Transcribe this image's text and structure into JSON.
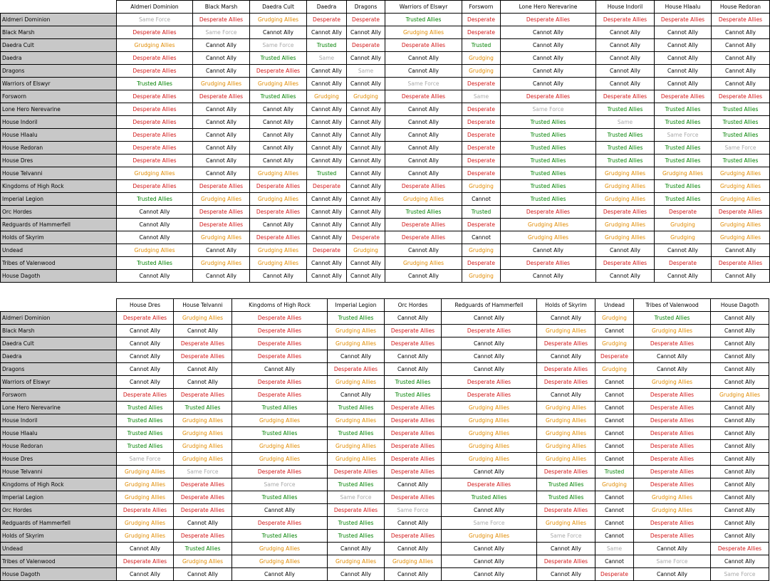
{
  "rows": [
    "Aldmeri Dominion",
    "Black Marsh",
    "Daedra Cult",
    "Daedra",
    "Dragons",
    "Warriors of Elswyr",
    "Forsworn",
    "Lone Hero Nerevarine",
    "House Indoril",
    "House Hlaalu",
    "House Redoran",
    "House Dres",
    "House Telvanni",
    "Kingdoms of High Rock",
    "Imperial Legion",
    "Orc Hordes",
    "Redguards of Hammerfell",
    "Holds of Skyrim",
    "Undead",
    "Tribes of Valenwood",
    "House Dagoth"
  ],
  "codes": {
    "T": "Trusted Allies",
    "G": "Grudging Allies",
    "D": "Desperate Allies",
    "C": "Cannot Ally",
    "S": "Same Force",
    "t": "Trusted",
    "g": "Grudging",
    "d": "Desperate",
    "c": "Cannot",
    "s": "Same"
  },
  "colors": {
    "trusted": "#008000",
    "grudging": "#e08a00",
    "desperate": "#d01818",
    "cannot": "#000000",
    "same": "#a8a8a8",
    "row_header_bg": "#c8c8c8"
  },
  "tables": [
    {
      "headers": [
        "Aldmeri Dominion",
        "Black Marsh",
        "Daedra Cult",
        "Daedra",
        "Dragons",
        "Warriors of Elswyr",
        "Forsworn",
        "Lone Hero Nerevarine",
        "House Indoril",
        "House Hlaalu",
        "House Redoran"
      ],
      "cells": [
        [
          "S",
          "D",
          "G",
          "d",
          "d",
          "T",
          "d",
          "D",
          "D",
          "D",
          "D"
        ],
        [
          "D",
          "S",
          "C",
          "C",
          "C",
          "G",
          "d",
          "C",
          "C",
          "C",
          "C"
        ],
        [
          "G",
          "C",
          "S",
          "t",
          "d",
          "D",
          "t",
          "C",
          "C",
          "C",
          "C"
        ],
        [
          "D",
          "C",
          "T",
          "s",
          "C",
          "C",
          "g",
          "C",
          "C",
          "C",
          "C"
        ],
        [
          "D",
          "C",
          "D",
          "C",
          "s",
          "C",
          "g",
          "C",
          "C",
          "C",
          "C"
        ],
        [
          "T",
          "G",
          "G",
          "C",
          "C",
          "S",
          "d",
          "C",
          "C",
          "C",
          "C"
        ],
        [
          "D",
          "D",
          "T",
          "g",
          "g",
          "D",
          "s",
          "D",
          "D",
          "D",
          "D"
        ],
        [
          "D",
          "C",
          "C",
          "C",
          "C",
          "C",
          "d",
          "S",
          "T",
          "T",
          "T"
        ],
        [
          "D",
          "C",
          "C",
          "C",
          "C",
          "C",
          "d",
          "T",
          "s",
          "T",
          "T"
        ],
        [
          "D",
          "C",
          "C",
          "C",
          "C",
          "C",
          "d",
          "T",
          "T",
          "S",
          "T"
        ],
        [
          "D",
          "C",
          "C",
          "C",
          "C",
          "C",
          "d",
          "T",
          "T",
          "T",
          "S"
        ],
        [
          "D",
          "C",
          "C",
          "C",
          "C",
          "C",
          "d",
          "T",
          "T",
          "T",
          "T"
        ],
        [
          "G",
          "C",
          "G",
          "t",
          "C",
          "C",
          "d",
          "T",
          "G",
          "G",
          "G"
        ],
        [
          "D",
          "D",
          "D",
          "d",
          "C",
          "D",
          "g",
          "T",
          "G",
          "T",
          "G"
        ],
        [
          "T",
          "G",
          "G",
          "C",
          "C",
          "G",
          "c",
          "T",
          "G",
          "T",
          "G"
        ],
        [
          "C",
          "D",
          "D",
          "C",
          "C",
          "T",
          "t",
          "D",
          "D",
          "d",
          "D"
        ],
        [
          "C",
          "D",
          "C",
          "C",
          "C",
          "D",
          "d",
          "G",
          "G",
          "g",
          "G"
        ],
        [
          "C",
          "G",
          "D",
          "C",
          "d",
          "D",
          "c",
          "G",
          "G",
          "g",
          "G"
        ],
        [
          "G",
          "C",
          "G",
          "d",
          "g",
          "C",
          "g",
          "C",
          "C",
          "C",
          "C"
        ],
        [
          "T",
          "G",
          "G",
          "C",
          "C",
          "G",
          "d",
          "D",
          "D",
          "d",
          "D"
        ],
        [
          "C",
          "C",
          "C",
          "C",
          "C",
          "C",
          "g",
          "C",
          "C",
          "C",
          "C"
        ]
      ]
    },
    {
      "headers": [
        "House Dres",
        "House Telvanni",
        "Kingdoms of High Rock",
        "Imperial Legion",
        "Orc Hordes",
        "Redguards of Hammerfell",
        "Holds of Skyrim",
        "Undead",
        "Tribes of Valenwood",
        "House Dagoth"
      ],
      "cells": [
        [
          "D",
          "G",
          "D",
          "T",
          "C",
          "C",
          "C",
          "g",
          "T",
          "C"
        ],
        [
          "C",
          "C",
          "D",
          "G",
          "D",
          "D",
          "G",
          "c",
          "G",
          "C"
        ],
        [
          "C",
          "D",
          "D",
          "G",
          "D",
          "C",
          "D",
          "g",
          "D",
          "C"
        ],
        [
          "C",
          "D",
          "D",
          "C",
          "C",
          "C",
          "C",
          "d",
          "C",
          "C"
        ],
        [
          "C",
          "C",
          "C",
          "D",
          "C",
          "C",
          "D",
          "g",
          "C",
          "C"
        ],
        [
          "C",
          "C",
          "D",
          "G",
          "T",
          "D",
          "D",
          "c",
          "G",
          "C"
        ],
        [
          "D",
          "D",
          "D",
          "C",
          "T",
          "D",
          "C",
          "c",
          "D",
          "G"
        ],
        [
          "T",
          "T",
          "T",
          "T",
          "D",
          "G",
          "G",
          "c",
          "D",
          "C"
        ],
        [
          "T",
          "G",
          "G",
          "G",
          "D",
          "G",
          "G",
          "c",
          "D",
          "C"
        ],
        [
          "T",
          "G",
          "T",
          "T",
          "D",
          "G",
          "G",
          "c",
          "D",
          "C"
        ],
        [
          "T",
          "G",
          "G",
          "G",
          "D",
          "G",
          "G",
          "c",
          "D",
          "C"
        ],
        [
          "S",
          "G",
          "G",
          "G",
          "D",
          "G",
          "G",
          "c",
          "D",
          "C"
        ],
        [
          "G",
          "S",
          "D",
          "D",
          "D",
          "C",
          "D",
          "t",
          "D",
          "C"
        ],
        [
          "G",
          "D",
          "S",
          "T",
          "C",
          "D",
          "T",
          "g",
          "D",
          "C"
        ],
        [
          "G",
          "D",
          "T",
          "S",
          "D",
          "T",
          "T",
          "c",
          "G",
          "C"
        ],
        [
          "D",
          "D",
          "C",
          "D",
          "S",
          "C",
          "D",
          "c",
          "G",
          "C"
        ],
        [
          "G",
          "C",
          "D",
          "T",
          "C",
          "S",
          "G",
          "c",
          "D",
          "C"
        ],
        [
          "G",
          "D",
          "T",
          "T",
          "D",
          "G",
          "S",
          "c",
          "D",
          "C"
        ],
        [
          "C",
          "T",
          "G",
          "C",
          "C",
          "C",
          "C",
          "s",
          "C",
          "D"
        ],
        [
          "D",
          "G",
          "G",
          "G",
          "G",
          "C",
          "D",
          "c",
          "S",
          "C"
        ],
        [
          "C",
          "C",
          "C",
          "C",
          "C",
          "C",
          "C",
          "d",
          "C",
          "S"
        ]
      ]
    }
  ]
}
